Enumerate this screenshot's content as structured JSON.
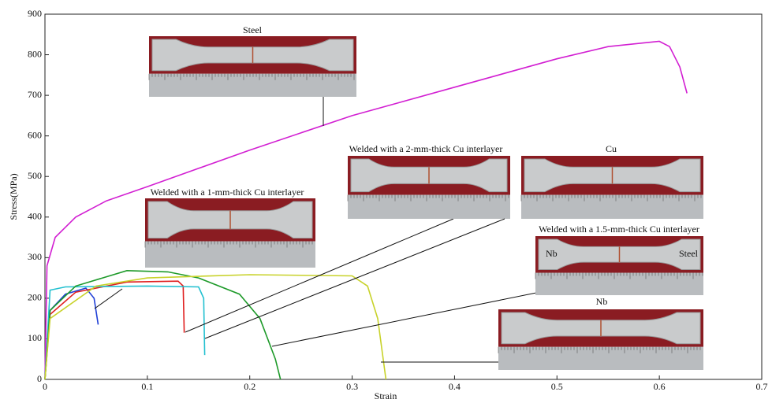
{
  "chart_data": {
    "type": "line",
    "xlabel": "Strain",
    "ylabel": "Stress(MPa)",
    "xlim": [
      0,
      0.7
    ],
    "xticks": [
      0,
      0.1,
      0.2,
      0.3,
      0.4,
      0.5,
      0.6,
      0.7
    ],
    "ylim": [
      0,
      900
    ],
    "yticks": [
      0,
      100,
      200,
      300,
      400,
      500,
      600,
      700,
      800,
      900
    ],
    "series": [
      {
        "name": "Steel",
        "color": "#d21fd2",
        "x": [
          0,
          0.002,
          0.01,
          0.03,
          0.06,
          0.1,
          0.15,
          0.2,
          0.3,
          0.4,
          0.5,
          0.55,
          0.6,
          0.61,
          0.62,
          0.627
        ],
        "values": [
          0,
          280,
          350,
          400,
          440,
          475,
          520,
          565,
          650,
          720,
          790,
          820,
          833,
          820,
          770,
          705
        ]
      },
      {
        "name": "Welded with a 1-mm-thick Cu interlayer",
        "color": "#1f3fd6",
        "x": [
          0,
          0.005,
          0.02,
          0.04,
          0.048,
          0.052
        ],
        "values": [
          0,
          170,
          210,
          225,
          200,
          135
        ]
      },
      {
        "name": "Welded with a 2-mm-thick Cu interlayer",
        "color": "#e02020",
        "x": [
          0,
          0.005,
          0.03,
          0.08,
          0.13,
          0.135,
          0.136
        ],
        "values": [
          0,
          160,
          215,
          240,
          242,
          230,
          115
        ]
      },
      {
        "name": "Cu",
        "color": "#22c0d0",
        "x": [
          0,
          0.005,
          0.02,
          0.1,
          0.15,
          0.155,
          0.156
        ],
        "values": [
          0,
          220,
          228,
          230,
          228,
          200,
          60
        ]
      },
      {
        "name": "Welded with a 1.5-mm-thick Cu interlayer",
        "color": "#1e9a2a",
        "x": [
          0,
          0.005,
          0.03,
          0.08,
          0.12,
          0.15,
          0.19,
          0.21,
          0.225,
          0.23
        ],
        "values": [
          0,
          170,
          230,
          268,
          265,
          250,
          210,
          150,
          50,
          0
        ]
      },
      {
        "name": "Nb",
        "color": "#c8d22a",
        "x": [
          0,
          0.005,
          0.05,
          0.1,
          0.2,
          0.3,
          0.315,
          0.325,
          0.333
        ],
        "values": [
          0,
          150,
          230,
          250,
          258,
          255,
          230,
          150,
          0
        ]
      }
    ],
    "photo_labels": [
      "Nb",
      "Steel"
    ]
  }
}
